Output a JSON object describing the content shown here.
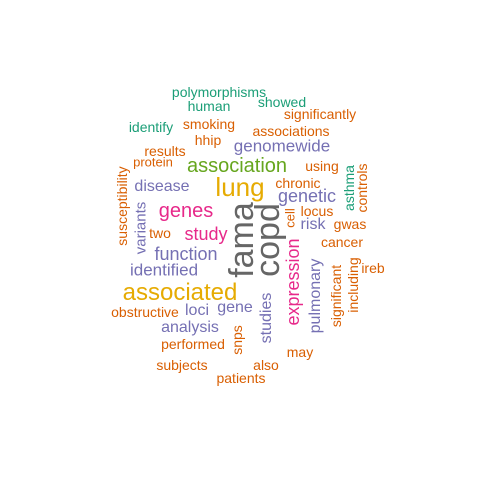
{
  "palette": {
    "teal": "#1b9e77",
    "orange": "#d95f02",
    "purple": "#7570b3",
    "magenta": "#e7298a",
    "green": "#66a61e",
    "gold": "#e6ab02",
    "gray": "#666666"
  },
  "words": [
    {
      "text": "fama",
      "color": "gray"
    },
    {
      "text": "copd",
      "color": "gray"
    },
    {
      "text": "lung",
      "color": "gold"
    },
    {
      "text": "associated",
      "color": "gold"
    },
    {
      "text": "association",
      "color": "green"
    },
    {
      "text": "genes",
      "color": "magenta"
    },
    {
      "text": "expression",
      "color": "magenta"
    },
    {
      "text": "study",
      "color": "magenta"
    },
    {
      "text": "genetic",
      "color": "purple"
    },
    {
      "text": "function",
      "color": "purple"
    },
    {
      "text": "identified",
      "color": "purple"
    },
    {
      "text": "genomewide",
      "color": "purple"
    },
    {
      "text": "disease",
      "color": "purple"
    },
    {
      "text": "risk",
      "color": "purple"
    },
    {
      "text": "gene",
      "color": "purple"
    },
    {
      "text": "loci",
      "color": "purple"
    },
    {
      "text": "studies",
      "color": "purple"
    },
    {
      "text": "pulmonary",
      "color": "purple"
    },
    {
      "text": "analysis",
      "color": "purple"
    },
    {
      "text": "variants",
      "color": "purple"
    },
    {
      "text": "polymorphisms",
      "color": "teal"
    },
    {
      "text": "human",
      "color": "teal"
    },
    {
      "text": "showed",
      "color": "teal"
    },
    {
      "text": "identify",
      "color": "teal"
    },
    {
      "text": "asthma",
      "color": "teal"
    },
    {
      "text": "significantly",
      "color": "orange"
    },
    {
      "text": "smoking",
      "color": "orange"
    },
    {
      "text": "associations",
      "color": "orange"
    },
    {
      "text": "hhip",
      "color": "orange"
    },
    {
      "text": "results",
      "color": "orange"
    },
    {
      "text": "protein",
      "color": "orange"
    },
    {
      "text": "using",
      "color": "orange"
    },
    {
      "text": "chronic",
      "color": "orange"
    },
    {
      "text": "controls",
      "color": "orange"
    },
    {
      "text": "susceptibility",
      "color": "orange"
    },
    {
      "text": "cell",
      "color": "orange"
    },
    {
      "text": "locus",
      "color": "orange"
    },
    {
      "text": "gwas",
      "color": "orange"
    },
    {
      "text": "two",
      "color": "orange"
    },
    {
      "text": "cancer",
      "color": "orange"
    },
    {
      "text": "ireb",
      "color": "orange"
    },
    {
      "text": "including",
      "color": "orange"
    },
    {
      "text": "significant",
      "color": "orange"
    },
    {
      "text": "obstructive",
      "color": "orange"
    },
    {
      "text": "performed",
      "color": "orange"
    },
    {
      "text": "snps",
      "color": "orange"
    },
    {
      "text": "may",
      "color": "orange"
    },
    {
      "text": "subjects",
      "color": "orange"
    },
    {
      "text": "also",
      "color": "orange"
    },
    {
      "text": "patients",
      "color": "orange"
    }
  ]
}
